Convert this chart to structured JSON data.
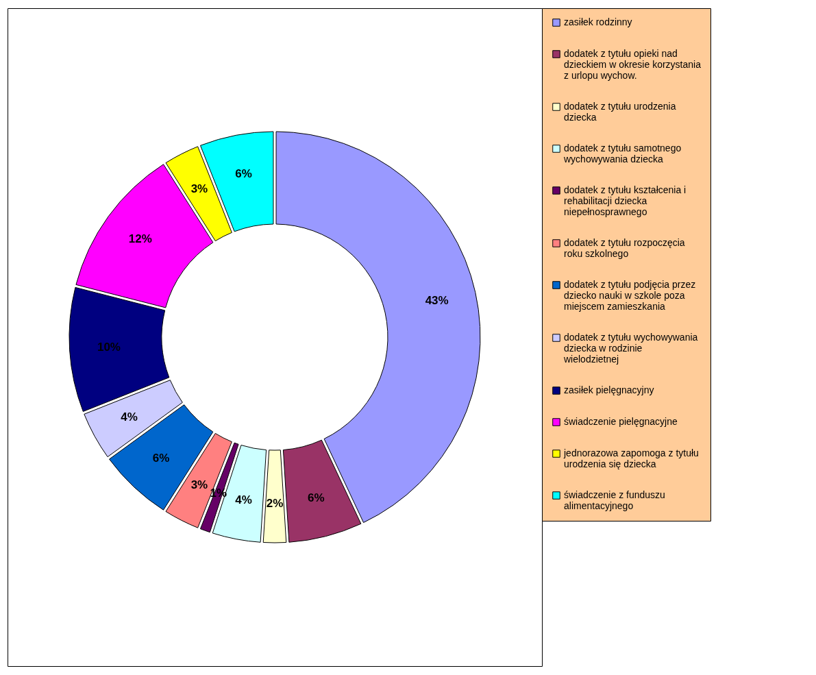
{
  "chart_data": {
    "type": "donut",
    "categories": [
      "zasiłek rodzinny",
      "dodatek z tytułu opieki nad dzieckiem w okresie korzystania z urlopu wychow.",
      "dodatek z tytułu urodzenia dziecka",
      "dodatek z tytułu samotnego wychowywania dziecka",
      "dodatek z tytułu kształcenia i rehabilitacji dziecka niepełnosprawnego",
      "dodatek z tytułu rozpoczęcia roku szkolnego",
      "dodatek z tytułu podjęcia przez dziecko nauki w szkole poza miejscem zamieszkania",
      "dodatek z tytułu wychowywania dziecka w rodzinie wielodzietnej",
      "zasiłek pielęgnacyjny",
      "świadczenie pielęgnacyjne",
      "jednorazowa zapomoga z tytułu urodzenia się dziecka",
      "świadczenie z funduszu alimentacyjnego"
    ],
    "values": [
      43,
      6,
      2,
      4,
      1,
      3,
      6,
      4,
      10,
      12,
      3,
      6
    ],
    "value_labels": [
      "43%",
      "6%",
      "2%",
      "4%",
      "1%",
      "3%",
      "6%",
      "4%",
      "10%",
      "12%",
      "3%",
      "6%"
    ],
    "colors": [
      "#9999ff",
      "#993366",
      "#ffffcc",
      "#ccffff",
      "#660066",
      "#ff8080",
      "#0066cc",
      "#ccccff",
      "#000080",
      "#ff00ff",
      "#ffff00",
      "#00ffff"
    ],
    "legend": "right"
  }
}
